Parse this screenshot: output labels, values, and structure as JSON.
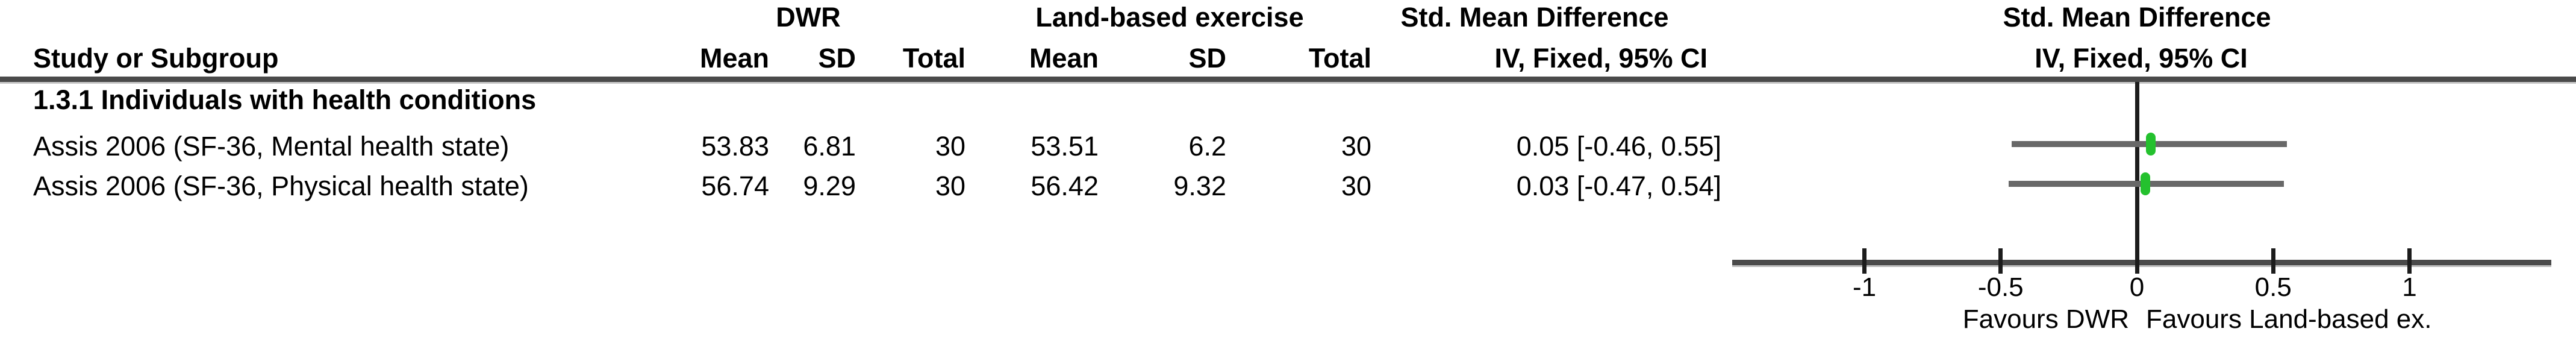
{
  "header": {
    "group1_label": "DWR",
    "group2_label": "Land-based exercise",
    "effect_label_table": "Std. Mean Difference",
    "effect_method_table": "IV, Fixed, 95% CI",
    "effect_label_plot": "Std. Mean Difference",
    "effect_method_plot": "IV, Fixed, 95% CI",
    "columns": {
      "study": "Study or Subgroup",
      "mean": "Mean",
      "sd": "SD",
      "total": "Total"
    }
  },
  "subgroup_heading": "1.3.1 Individuals with health conditions",
  "rows": [
    {
      "study": "Assis 2006 (SF-36, Mental health state)",
      "mean1": "53.83",
      "sd1": "6.81",
      "total1": "30",
      "mean2": "53.51",
      "sd2": "6.2",
      "total2": "30",
      "ci_text": "0.05 [-0.46, 0.55]"
    },
    {
      "study": "Assis 2006 (SF-36, Physical health state)",
      "mean1": "56.74",
      "sd1": "9.29",
      "total1": "30",
      "mean2": "56.42",
      "sd2": "9.32",
      "total2": "30",
      "ci_text": "0.03 [-0.47, 0.54]"
    }
  ],
  "chart_data": {
    "type": "forest",
    "title": "Std. Mean Difference",
    "subtitle": "IV, Fixed, 95% CI",
    "xlim": [
      -1.5,
      1.5
    ],
    "ticks": [
      -1,
      -0.5,
      0,
      0.5,
      1
    ],
    "tick_labels": [
      "-1",
      "-0.5",
      "0",
      "0.5",
      "1"
    ],
    "zero_line": 0,
    "favours_left": "Favours DWR",
    "favours_right": "Favours Land-based ex.",
    "marker_color": "#24c12e",
    "ci_color": "#686868",
    "studies": [
      {
        "label": "Assis 2006 (SF-36, Mental health state)",
        "estimate": 0.05,
        "ci_low": -0.46,
        "ci_high": 0.55,
        "group": "1.3.1 Individuals with health conditions"
      },
      {
        "label": "Assis 2006 (SF-36, Physical health state)",
        "estimate": 0.03,
        "ci_low": -0.47,
        "ci_high": 0.54,
        "group": "1.3.1 Individuals with health conditions"
      }
    ]
  }
}
